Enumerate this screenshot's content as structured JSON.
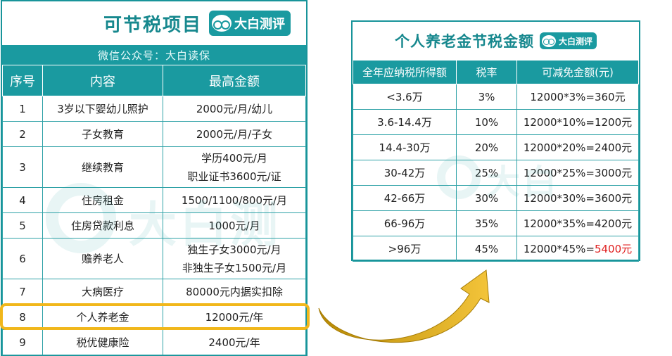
{
  "left": {
    "title": "可节税项目",
    "brand": "大白测评",
    "subtitle": "微信公众号：大白读保",
    "headers": [
      "序号",
      "内容",
      "最高金额"
    ],
    "rows": [
      {
        "idx": "1",
        "content": "3岁以下婴幼儿照护",
        "amount": [
          "2000元/月/幼儿"
        ]
      },
      {
        "idx": "2",
        "content": "子女教育",
        "amount": [
          "2000元/月/子女"
        ]
      },
      {
        "idx": "3",
        "content": "继续教育",
        "amount": [
          "学历400元/月",
          "职业证书3600元/证"
        ]
      },
      {
        "idx": "4",
        "content": "住房租金",
        "amount": [
          "1500/1100/800元/月"
        ]
      },
      {
        "idx": "5",
        "content": "住房贷款利息",
        "amount": [
          "1000元/月"
        ]
      },
      {
        "idx": "6",
        "content": "赡养老人",
        "amount": [
          "独生子女3000元/月",
          "非独生子女1500元/月"
        ]
      },
      {
        "idx": "7",
        "content": "大病医疗",
        "amount": [
          "80000元内据实扣除"
        ]
      },
      {
        "idx": "8",
        "content": "个人养老金",
        "amount": [
          "12000元/年"
        ]
      },
      {
        "idx": "9",
        "content": "税优健康险",
        "amount": [
          "2400元/年"
        ]
      }
    ],
    "highlight_row": "8",
    "watermark": "大白测"
  },
  "right": {
    "title": "个人养老金节税金额",
    "brand": "大白测评",
    "headers": [
      "全年应纳税所得额",
      "税率",
      "可减免金额(元)"
    ],
    "rows": [
      {
        "income": "<3.6万",
        "rate": "3%",
        "formula": "12000*3%=",
        "result": "360元",
        "result_red": false
      },
      {
        "income": "3.6-14.4万",
        "rate": "10%",
        "formula": "12000*10%=",
        "result": "1200元",
        "result_red": false
      },
      {
        "income": "14.4-30万",
        "rate": "20%",
        "formula": "12000*20%=",
        "result": "2400元",
        "result_red": false
      },
      {
        "income": "30-42万",
        "rate": "25%",
        "formula": "12000*25%=",
        "result": "3000元",
        "result_red": false
      },
      {
        "income": "42-66万",
        "rate": "30%",
        "formula": "12000*30%=",
        "result": "3600元",
        "result_red": false
      },
      {
        "income": "66-96万",
        "rate": "35%",
        "formula": "12000*35%=",
        "result": "4200元",
        "result_red": false
      },
      {
        "income": ">96万",
        "rate": "45%",
        "formula": "12000*45%=",
        "result": "5400元",
        "result_red": true
      }
    ],
    "watermark": "大白"
  },
  "colors": {
    "teal": "#1a9aa0",
    "highlight": "#f1b71b",
    "arrow": "#c99a06",
    "red": "#e02020"
  }
}
